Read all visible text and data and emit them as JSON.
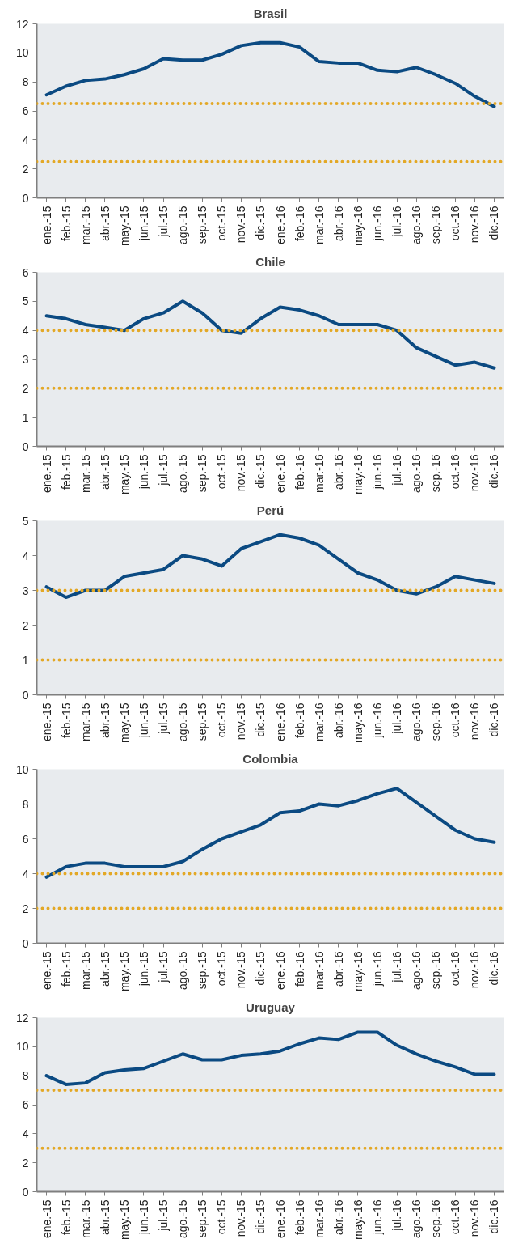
{
  "chart_data": [
    {
      "type": "line",
      "title": "Brasil",
      "categories": [
        "ene.-15",
        "feb.-15",
        "mar.-15",
        "abr.-15",
        "may.-15",
        "jun.-15",
        "jul.-15",
        "ago.-15",
        "sep.-15",
        "oct.-15",
        "nov.-15",
        "dic.-15",
        "ene.-16",
        "feb.-16",
        "mar.-16",
        "abr.-16",
        "may.-16",
        "jun.-16",
        "jul.-16",
        "ago.-16",
        "sep.-16",
        "oct.-16",
        "nov.-16",
        "dic.-16"
      ],
      "series": [
        {
          "color": "#0b4a82",
          "values": [
            7.1,
            7.7,
            8.1,
            8.2,
            8.5,
            8.9,
            9.6,
            9.5,
            9.5,
            9.9,
            10.5,
            10.7,
            10.7,
            10.4,
            9.4,
            9.3,
            9.3,
            8.8,
            8.7,
            9.0,
            8.5,
            7.9,
            7.0,
            6.3
          ]
        }
      ],
      "ylim": [
        0,
        12
      ],
      "yticks": [
        0,
        2,
        4,
        6,
        8,
        10,
        12
      ],
      "marker": "none",
      "line_style": "solid",
      "ref_lines": [
        {
          "axis": "y",
          "value": 6.5,
          "color": "#e3a826",
          "line_style": "dotted"
        },
        {
          "axis": "y",
          "value": 2.5,
          "color": "#e3a826",
          "line_style": "dotted"
        }
      ]
    },
    {
      "type": "line",
      "title": "Chile",
      "categories": [
        "ene.-15",
        "feb.-15",
        "mar.-15",
        "abr.-15",
        "may.-15",
        "jun.-15",
        "jul.-15",
        "ago.-15",
        "sep.-15",
        "oct.-15",
        "nov.-15",
        "dic.-15",
        "ene.-16",
        "feb.-16",
        "mar.-16",
        "abr.-16",
        "may.-16",
        "jun.-16",
        "jul.-16",
        "ago.-16",
        "sep.-16",
        "oct.-16",
        "nov.-16",
        "dic.-16"
      ],
      "series": [
        {
          "color": "#0b4a82",
          "values": [
            4.5,
            4.4,
            4.2,
            4.1,
            4.0,
            4.4,
            4.6,
            5.0,
            4.6,
            4.0,
            3.9,
            4.4,
            4.8,
            4.7,
            4.5,
            4.2,
            4.2,
            4.2,
            4.0,
            3.4,
            3.1,
            2.8,
            2.9,
            2.7
          ]
        }
      ],
      "ylim": [
        0,
        6
      ],
      "yticks": [
        0,
        1,
        2,
        3,
        4,
        5,
        6
      ],
      "marker": "none",
      "line_style": "solid",
      "ref_lines": [
        {
          "axis": "y",
          "value": 4,
          "color": "#e3a826",
          "line_style": "dotted"
        },
        {
          "axis": "y",
          "value": 2,
          "color": "#e3a826",
          "line_style": "dotted"
        }
      ]
    },
    {
      "type": "line",
      "title": "Perú",
      "categories": [
        "ene.-15",
        "feb.-15",
        "mar.-15",
        "abr.-15",
        "may.-15",
        "jun.-15",
        "jul.-15",
        "ago.-15",
        "sep.-15",
        "oct.-15",
        "nov.-15",
        "dic.-15",
        "ene.-16",
        "feb.-16",
        "mar.-16",
        "abr.-16",
        "may.-16",
        "jun.-16",
        "jul.-16",
        "ago.-16",
        "sep.-16",
        "oct.-16",
        "nov.-16",
        "dic.-16"
      ],
      "series": [
        {
          "color": "#0b4a82",
          "values": [
            3.1,
            2.8,
            3.0,
            3.0,
            3.4,
            3.5,
            3.6,
            4.0,
            3.9,
            3.7,
            4.2,
            4.4,
            4.6,
            4.5,
            4.3,
            3.9,
            3.5,
            3.3,
            3.0,
            2.9,
            3.1,
            3.4,
            3.3,
            3.2
          ]
        }
      ],
      "ylim": [
        0,
        5
      ],
      "yticks": [
        0,
        1,
        2,
        3,
        4,
        5
      ],
      "marker": "none",
      "line_style": "solid",
      "ref_lines": [
        {
          "axis": "y",
          "value": 3,
          "color": "#e3a826",
          "line_style": "dotted"
        },
        {
          "axis": "y",
          "value": 1,
          "color": "#e3a826",
          "line_style": "dotted"
        }
      ]
    },
    {
      "type": "line",
      "title": "Colombia",
      "categories": [
        "ene.-15",
        "feb.-15",
        "mar.-15",
        "abr.-15",
        "may.-15",
        "jun.-15",
        "jul.-15",
        "ago.-15",
        "sep.-15",
        "oct.-15",
        "nov.-15",
        "dic.-15",
        "ene.-16",
        "feb.-16",
        "mar.-16",
        "abr.-16",
        "may.-16",
        "jun.-16",
        "jul.-16",
        "ago.-16",
        "sep.-16",
        "oct.-16",
        "nov.-16",
        "dic.-16"
      ],
      "series": [
        {
          "color": "#0b4a82",
          "values": [
            3.8,
            4.4,
            4.6,
            4.6,
            4.4,
            4.4,
            4.4,
            4.7,
            5.4,
            6.0,
            6.4,
            6.8,
            7.5,
            7.6,
            8.0,
            7.9,
            8.2,
            8.6,
            8.9,
            8.1,
            7.3,
            6.5,
            6.0,
            5.8
          ]
        }
      ],
      "ylim": [
        0,
        10
      ],
      "yticks": [
        0,
        2,
        4,
        6,
        8,
        10
      ],
      "marker": "none",
      "line_style": "solid",
      "ref_lines": [
        {
          "axis": "y",
          "value": 4,
          "color": "#e3a826",
          "line_style": "dotted"
        },
        {
          "axis": "y",
          "value": 2,
          "color": "#e3a826",
          "line_style": "dotted"
        }
      ]
    },
    {
      "type": "line",
      "title": "Uruguay",
      "categories": [
        "ene.-15",
        "feb.-15",
        "mar.-15",
        "abr.-15",
        "may.-15",
        "jun.-15",
        "jul.-15",
        "ago.-15",
        "sep.-15",
        "oct.-15",
        "nov.-15",
        "dic.-15",
        "ene.-16",
        "feb.-16",
        "mar.-16",
        "abr.-16",
        "may.-16",
        "jun.-16",
        "jul.-16",
        "ago.-16",
        "sep.-16",
        "oct.-16",
        "nov.-16",
        "dic.-16"
      ],
      "series": [
        {
          "color": "#0b4a82",
          "values": [
            8.0,
            7.4,
            7.5,
            8.2,
            8.4,
            8.5,
            9.0,
            9.5,
            9.1,
            9.1,
            9.4,
            9.5,
            9.7,
            10.2,
            10.6,
            10.5,
            11.0,
            11.0,
            10.1,
            9.5,
            9.0,
            8.6,
            8.1,
            8.1
          ]
        }
      ],
      "ylim": [
        0,
        12
      ],
      "yticks": [
        0,
        2,
        4,
        6,
        8,
        10,
        12
      ],
      "marker": "none",
      "line_style": "solid",
      "ref_lines": [
        {
          "axis": "y",
          "value": 7,
          "color": "#e3a826",
          "line_style": "dotted"
        },
        {
          "axis": "y",
          "value": 3,
          "color": "#e3a826",
          "line_style": "dotted"
        }
      ]
    }
  ]
}
